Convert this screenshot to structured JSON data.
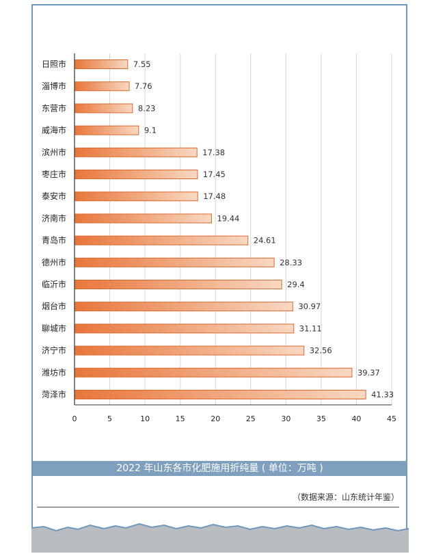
{
  "chart_data": {
    "type": "bar",
    "orientation": "horizontal",
    "title": "2022 年山东各市化肥施用折纯量 ( 单位：万吨 )",
    "source": "（数据来源：山东统计年鉴）",
    "categories": [
      "日照市",
      "淄博市",
      "东营市",
      "威海市",
      "滨州市",
      "枣庄市",
      "泰安市",
      "济南市",
      "青岛市",
      "德州市",
      "临沂市",
      "烟台市",
      "聊城市",
      "济宁市",
      "潍坊市",
      "菏泽市"
    ],
    "values": [
      7.55,
      7.76,
      8.23,
      9.1,
      17.38,
      17.45,
      17.48,
      19.44,
      24.61,
      28.33,
      29.4,
      30.97,
      31.11,
      32.56,
      39.37,
      41.33
    ],
    "value_labels": [
      "7.55",
      "7.76",
      "8.23",
      "9.1",
      "17.38",
      "17.45",
      "17.48",
      "19.44",
      "24.61",
      "28.33",
      "29.4",
      "30.97",
      "31.11",
      "32.56",
      "39.37",
      "41.33"
    ],
    "xlim": [
      0,
      45
    ],
    "xticks": [
      0,
      5,
      10,
      15,
      20,
      25,
      30,
      35,
      40,
      45
    ],
    "grid": true,
    "legend": "none",
    "colors": {
      "bar_dark": "#e8763a",
      "bar_light": "#f8d8c2",
      "bar_border": "#d9692f",
      "band": "#7e9fbd",
      "frame": "#6f97bd"
    }
  }
}
